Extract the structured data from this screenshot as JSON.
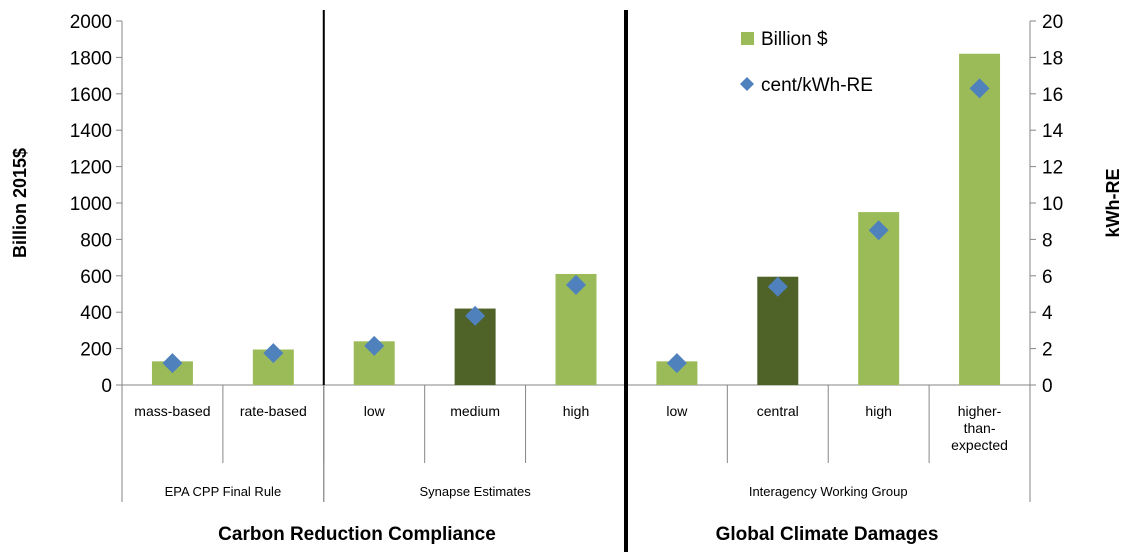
{
  "chart_data": {
    "type": "bar",
    "categories": [
      "mass-based",
      "rate-based",
      "low",
      "medium",
      "high",
      "low",
      "central",
      "high",
      "higher-than-expected"
    ],
    "category_lines": [
      [
        "mass-based"
      ],
      [
        "rate-based"
      ],
      [
        "low"
      ],
      [
        "medium"
      ],
      [
        "high"
      ],
      [
        "low"
      ],
      [
        "central"
      ],
      [
        "high"
      ],
      [
        "higher-",
        "than-",
        "expected"
      ]
    ],
    "groups": [
      {
        "label": "EPA CPP Final Rule",
        "span": [
          0,
          1
        ]
      },
      {
        "label": "Synapse Estimates",
        "span": [
          2,
          4
        ]
      },
      {
        "label": "Interagency Working Group",
        "span": [
          5,
          8
        ]
      }
    ],
    "sections": [
      {
        "label": "Carbon Reduction Compliance",
        "span": [
          0,
          4
        ]
      },
      {
        "label": "Global Climate Damages",
        "span": [
          5,
          8
        ]
      }
    ],
    "series": [
      {
        "name": "Billion $",
        "kind": "bar",
        "axis": "left",
        "values": [
          130,
          195,
          240,
          420,
          610,
          130,
          595,
          950,
          1820
        ],
        "colors": [
          "#9bbb59",
          "#9bbb59",
          "#9bbb59",
          "#4f6228",
          "#9bbb59",
          "#9bbb59",
          "#4f6228",
          "#9bbb59",
          "#9bbb59"
        ]
      },
      {
        "name": "cent/kWh-RE",
        "kind": "scatter",
        "axis": "right",
        "marker": "diamond",
        "color": "#4f81bd",
        "values": [
          1.2,
          1.75,
          2.15,
          3.8,
          5.5,
          1.2,
          5.4,
          8.5,
          16.3
        ]
      }
    ],
    "ylabel": "Billion 2015$",
    "ylim": [
      0,
      2000
    ],
    "yticks": [
      0,
      200,
      400,
      600,
      800,
      1000,
      1200,
      1400,
      1600,
      1800,
      2000
    ],
    "y2label": "kWh-RE",
    "y2lim": [
      0,
      20
    ],
    "y2ticks": [
      0,
      2,
      4,
      6,
      8,
      10,
      12,
      14,
      16,
      18,
      20
    ],
    "legend_position": "top-right",
    "grid": false
  }
}
